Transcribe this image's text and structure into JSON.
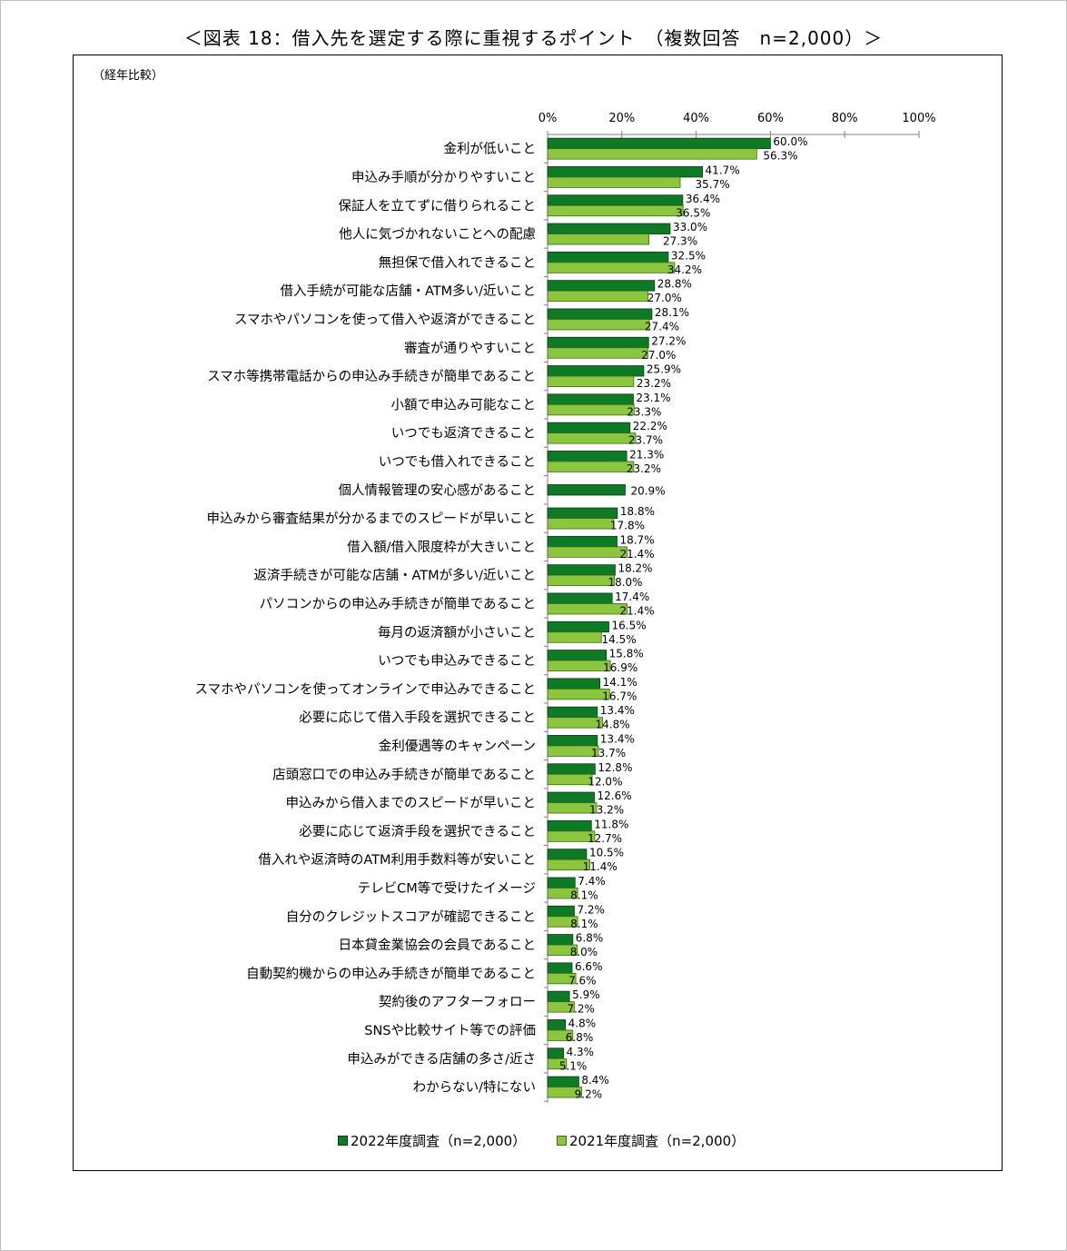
{
  "title": "＜図表 18：借入先を選定する際に重視するポイント　（複数回答　n=2,000）＞",
  "subtitle": "（経年比較）",
  "colors": {
    "series_2022": "#0e7a25",
    "series_2021": "#8cc63f",
    "axis": "#808080"
  },
  "chart_data": {
    "type": "bar",
    "orientation": "horizontal",
    "title": "＜図表 18：借入先を選定する際に重視するポイント　（複数回答　n=2,000）＞",
    "subtitle": "（経年比較）",
    "xlim": [
      0,
      100
    ],
    "x_ticks": [
      "0%",
      "20%",
      "40%",
      "60%",
      "80%",
      "100%"
    ],
    "x_tick_values": [
      0,
      20,
      40,
      60,
      80,
      100
    ],
    "value_suffix": "%",
    "legend_position": "bottom",
    "categories": [
      "金利が低いこと",
      "申込み手順が分かりやすいこと",
      "保証人を立てずに借りられること",
      "他人に気づかれないことへの配慮",
      "無担保で借入れできること",
      "借入手続が可能な店舗・ATM多い/近いこと",
      "スマホやパソコンを使って借入や返済ができること",
      "審査が通りやすいこと",
      "スマホ等携帯電話からの申込み手続きが簡単であること",
      "小額で申込み可能なこと",
      "いつでも返済できること",
      "いつでも借入れできること",
      "個人情報管理の安心感があること",
      "申込みから審査結果が分かるまでのスピードが早いこと",
      "借入額/借入限度枠が大きいこと",
      "返済手続きが可能な店舗・ATMが多い/近いこと",
      "パソコンからの申込み手続きが簡単であること",
      "毎月の返済額が小さいこと",
      "いつでも申込みできること",
      "スマホやパソコンを使ってオンラインで申込みできること",
      "必要に応じて借入手段を選択できること",
      "金利優遇等のキャンペーン",
      "店頭窓口での申込み手続きが簡単であること",
      "申込みから借入までのスピードが早いこと",
      "必要に応じて返済手段を選択できること",
      "借入れや返済時のATM利用手数料等が安いこと",
      "テレビCM等で受けたイメージ",
      "自分のクレジットスコアが確認できること",
      "日本貸金業協会の会員であること",
      "自動契約機からの申込み手続きが簡単であること",
      "契約後のアフターフォロー",
      "SNSや比較サイト等での評価",
      "申込みができる店舗の多さ/近さ",
      "わからない/特にない"
    ],
    "series": [
      {
        "name": "2022年度調査（n=2,000）",
        "values": [
          60.0,
          41.7,
          36.4,
          33.0,
          32.5,
          28.8,
          28.1,
          27.2,
          25.9,
          23.1,
          22.2,
          21.3,
          20.9,
          18.8,
          18.7,
          18.2,
          17.4,
          16.5,
          15.8,
          14.1,
          13.4,
          13.4,
          12.8,
          12.6,
          11.8,
          10.5,
          7.4,
          7.2,
          6.8,
          6.6,
          5.9,
          4.8,
          4.3,
          8.4
        ],
        "labels": [
          "60.0%",
          "41.7%",
          "36.4%",
          "33.0%",
          "32.5%",
          "28.8%",
          "28.1%",
          "27.2%",
          "25.9%",
          "23.1%",
          "22.2%",
          "21.3%",
          "20.9%",
          "18.8%",
          "18.7%",
          "18.2%",
          "17.4%",
          "16.5%",
          "15.8%",
          "14.1%",
          "13.4%",
          "13.4%",
          "12.8%",
          "12.6%",
          "11.8%",
          "10.5%",
          "7.4%",
          "7.2%",
          "6.8%",
          "6.6%",
          "5.9%",
          "4.8%",
          "4.3%",
          "8.4%"
        ]
      },
      {
        "name": "2021年度調査（n=2,000）",
        "values": [
          56.3,
          35.7,
          36.5,
          27.3,
          34.2,
          27.0,
          27.4,
          27.0,
          23.2,
          23.3,
          23.7,
          23.2,
          null,
          17.8,
          21.4,
          18.0,
          21.4,
          14.5,
          16.9,
          16.7,
          14.8,
          13.7,
          12.0,
          13.2,
          12.7,
          11.4,
          8.1,
          8.1,
          8.0,
          7.6,
          7.2,
          6.8,
          5.1,
          9.2
        ],
        "labels": [
          "56.3%",
          "35.7%",
          "36.5%",
          "27.3%",
          "34.2%",
          "27.0%",
          "27.4%",
          "27.0%",
          "23.2%",
          "23.3%",
          "23.7%",
          "23.2%",
          null,
          "17.8%",
          "21.4%",
          "18.0%",
          "21.4%",
          "14.5%",
          "16.9%",
          "16.7%",
          "14.8%",
          "13.7%",
          "12.0%",
          "13.2%",
          "12.7%",
          "11.4%",
          "8.1%",
          "8.1%",
          "8.0%",
          "7.6%",
          "7.2%",
          "6.8%",
          "5.1%",
          "9.2%"
        ]
      }
    ]
  },
  "legend": {
    "item_2022": "2022年度調査（n=2,000）",
    "item_2021": "2021年度調査（n=2,000）"
  }
}
